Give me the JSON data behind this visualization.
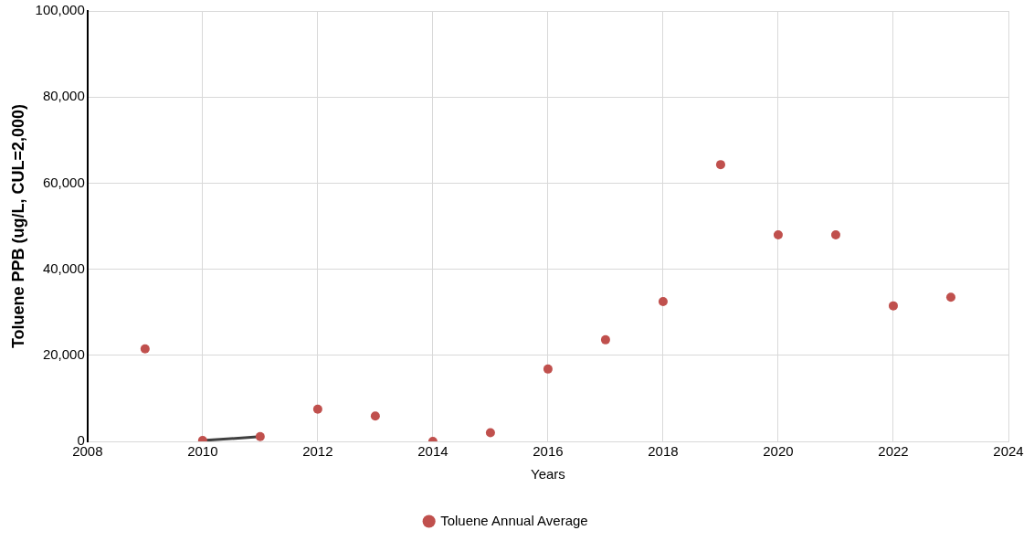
{
  "chart_data": {
    "type": "scatter",
    "xlabel": "Years",
    "ylabel": "Toluene PPB (ug/L, CUL=2,000)",
    "xlim": [
      2008,
      2024
    ],
    "xticks": [
      2008,
      2010,
      2012,
      2014,
      2016,
      2018,
      2020,
      2022,
      2024
    ],
    "ylim": [
      0,
      100000
    ],
    "yticks": [
      0,
      {
        "value": 20000,
        "label": "20,000"
      },
      {
        "value": 40000,
        "label": "40,000"
      },
      {
        "value": 60000,
        "label": "60,000"
      },
      {
        "value": 80000,
        "label": "80,000"
      },
      {
        "value": 100000,
        "label": "100,000"
      }
    ],
    "grid": true,
    "legend": "bottom",
    "series": [
      {
        "name": "Toluene Annual Average",
        "type": "scatter",
        "marker": "circle",
        "color": "#c0504d",
        "x": [
          2009,
          2010,
          2011,
          2012,
          2013,
          2014,
          2015,
          2016,
          2017,
          2018,
          2019,
          2020,
          2021,
          2022,
          2023
        ],
        "values": [
          21500,
          200,
          1100,
          7500,
          5900,
          0,
          2000,
          16800,
          23600,
          32500,
          64300,
          48000,
          48000,
          31500,
          33500
        ]
      },
      {
        "type": "line",
        "marker": "none",
        "color": "#404040",
        "x": [
          2010,
          2011
        ],
        "values": [
          200,
          1100
        ]
      }
    ]
  }
}
